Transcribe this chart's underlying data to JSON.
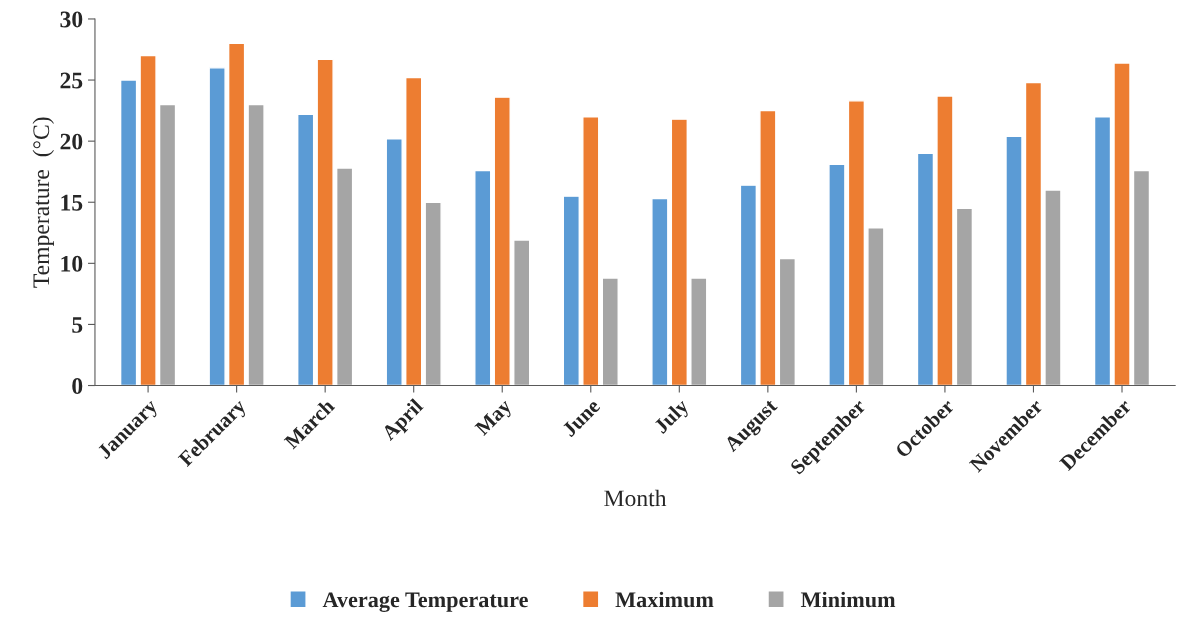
{
  "chart_data": {
    "type": "bar",
    "xlabel": "Month",
    "ylabel": "Temperature  (°C)",
    "categories": [
      "January",
      "February",
      "March",
      "April",
      "May",
      "June",
      "July",
      "August",
      "September",
      "October",
      "November",
      "December"
    ],
    "series": [
      {
        "name": "Average Temperature",
        "color": "#5b9bd5",
        "values": [
          25.0,
          26.0,
          22.2,
          20.2,
          17.6,
          15.5,
          15.3,
          16.4,
          18.1,
          19.0,
          20.4,
          22.0
        ]
      },
      {
        "name": "Maximum",
        "color": "#ed7d31",
        "values": [
          27.0,
          28.0,
          26.7,
          25.2,
          23.6,
          22.0,
          21.8,
          22.5,
          23.3,
          23.7,
          24.8,
          26.4
        ]
      },
      {
        "name": "Minimum",
        "color": "#a5a5a5",
        "values": [
          23.0,
          23.0,
          17.8,
          15.0,
          11.9,
          8.8,
          8.8,
          10.4,
          12.9,
          14.5,
          16.0,
          17.6
        ]
      }
    ],
    "ylim": [
      0,
      30
    ],
    "yticks": [
      0,
      5,
      10,
      15,
      20,
      25,
      30
    ],
    "grid": false,
    "legend": "bottom"
  }
}
